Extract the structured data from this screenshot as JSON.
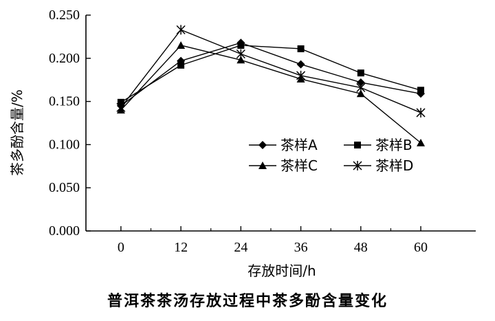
{
  "chart_data": {
    "type": "line",
    "title": "",
    "ylabel": "茶多酚含量/%",
    "xlabel": "存放时间/h",
    "x": [
      0,
      12,
      24,
      36,
      48,
      60
    ],
    "xlim": [
      -7,
      71
    ],
    "ylim": [
      0,
      0.25
    ],
    "yticks": [
      "0.000",
      "0.050",
      "0.100",
      "0.150",
      "0.200",
      "0.250"
    ],
    "grid": false,
    "legend_position": "center-right",
    "series": [
      {
        "name": "茶样A",
        "marker": "diamond",
        "values": [
          0.145,
          0.197,
          0.218,
          0.193,
          0.172,
          0.159
        ]
      },
      {
        "name": "茶样B",
        "marker": "square",
        "values": [
          0.149,
          0.192,
          0.215,
          0.211,
          0.183,
          0.163
        ]
      },
      {
        "name": "茶样C",
        "marker": "triangle",
        "values": [
          0.14,
          0.215,
          0.198,
          0.176,
          0.159,
          0.102
        ]
      },
      {
        "name": "茶样D",
        "marker": "asterisk",
        "values": [
          0.143,
          0.233,
          0.205,
          0.18,
          0.166,
          0.137
        ]
      }
    ],
    "line_color": "#000000"
  },
  "caption": "普洱茶茶汤存放过程中茶多酚含量变化"
}
